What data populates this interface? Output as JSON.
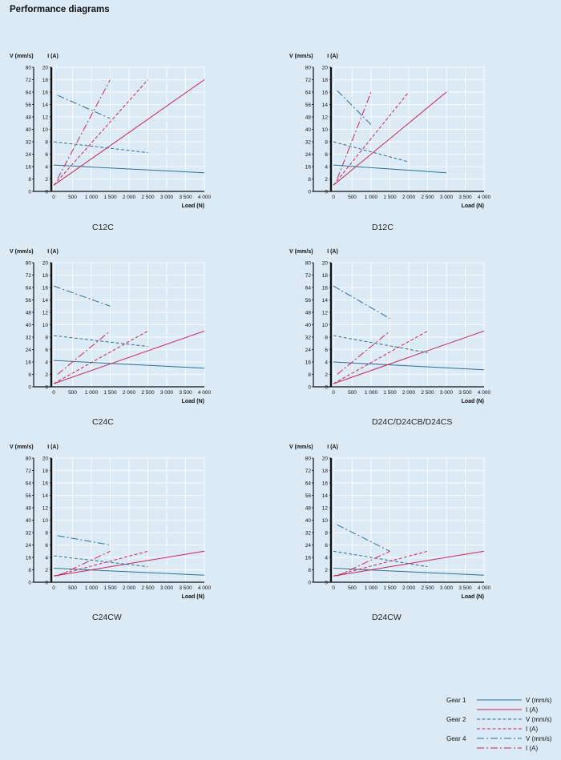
{
  "page_title": "Performance diagrams",
  "colors": {
    "velocity": "#2a6f9a",
    "current": "#c8245a",
    "grid": "#ffffff",
    "axis": "#111111",
    "background": "#dceaf6"
  },
  "legend": {
    "items": [
      {
        "gear": "Gear 1",
        "label": "V (mm/s)",
        "quantity": "velocity",
        "dash": "solid"
      },
      {
        "gear": "",
        "label": "I (A)",
        "quantity": "current",
        "dash": "solid"
      },
      {
        "gear": "Gear 2",
        "label": "V (mm/s)",
        "quantity": "velocity",
        "dash": "dashed"
      },
      {
        "gear": "",
        "label": "I (A)",
        "quantity": "current",
        "dash": "dashed"
      },
      {
        "gear": "Gear 4",
        "label": "V (mm/s)",
        "quantity": "velocity",
        "dash": "dashdot"
      },
      {
        "gear": "",
        "label": "I (A)",
        "quantity": "current",
        "dash": "dashdot"
      }
    ]
  },
  "chart_data": [
    {
      "type": "line",
      "name": "C12C",
      "xlabel": "Load (N)",
      "ylabel_left": "V (mm/s)",
      "ylabel_right": "I (A)",
      "xlim": [
        0,
        4000
      ],
      "ylim_v": [
        0,
        80
      ],
      "ylim_i": [
        0,
        20
      ],
      "grid": true,
      "xticks": [
        "0",
        "500",
        "1 000",
        "1 500",
        "2 000",
        "2 500",
        "3 000",
        "3 500",
        "4 000"
      ],
      "yticks_v": [
        "0",
        "8",
        "16",
        "24",
        "32",
        "40",
        "48",
        "56",
        "64",
        "72",
        "80"
      ],
      "yticks_i": [
        "0",
        "2",
        "4",
        "6",
        "8",
        "10",
        "12",
        "14",
        "16",
        "18",
        "20"
      ],
      "series": [
        {
          "name": "Gear 1 V (mm/s)",
          "axis": "v",
          "dash": "solid",
          "points": [
            [
              0,
              17
            ],
            [
              4000,
              12
            ]
          ]
        },
        {
          "name": "Gear 1 I (A)",
          "axis": "i",
          "dash": "solid",
          "points": [
            [
              0,
              1
            ],
            [
              4000,
              18
            ]
          ]
        },
        {
          "name": "Gear 2 V (mm/s)",
          "axis": "v",
          "dash": "dashed",
          "points": [
            [
              0,
              32
            ],
            [
              2500,
              25
            ]
          ]
        },
        {
          "name": "Gear 2 I (A)",
          "axis": "i",
          "dash": "dashed",
          "points": [
            [
              0,
              1
            ],
            [
              2500,
              18
            ]
          ]
        },
        {
          "name": "Gear 4 V (mm/s)",
          "axis": "v",
          "dash": "dashdot",
          "points": [
            [
              100,
              62
            ],
            [
              1500,
              47
            ]
          ]
        },
        {
          "name": "Gear 4 I (A)",
          "axis": "i",
          "dash": "dashdot",
          "points": [
            [
              100,
              2
            ],
            [
              1500,
              18
            ]
          ]
        }
      ]
    },
    {
      "type": "line",
      "name": "D12C",
      "xlabel": "Load (N)",
      "ylabel_left": "V (mm/s)",
      "ylabel_right": "I (A)",
      "xlim": [
        0,
        4000
      ],
      "ylim_v": [
        0,
        80
      ],
      "ylim_i": [
        0,
        20
      ],
      "grid": true,
      "xticks": [
        "0",
        "500",
        "1 000",
        "1 500",
        "2 000",
        "2 500",
        "3 000",
        "3 500",
        "4 000"
      ],
      "yticks_v": [
        "0",
        "8",
        "16",
        "24",
        "32",
        "40",
        "48",
        "56",
        "64",
        "72",
        "80"
      ],
      "yticks_i": [
        "0",
        "2",
        "4",
        "6",
        "8",
        "10",
        "12",
        "14",
        "16",
        "18",
        "20"
      ],
      "series": [
        {
          "name": "Gear 1 V (mm/s)",
          "axis": "v",
          "dash": "solid",
          "points": [
            [
              0,
              17
            ],
            [
              3000,
              12
            ]
          ]
        },
        {
          "name": "Gear 1 I (A)",
          "axis": "i",
          "dash": "solid",
          "points": [
            [
              0,
              1
            ],
            [
              3000,
              16
            ]
          ]
        },
        {
          "name": "Gear 2 V (mm/s)",
          "axis": "v",
          "dash": "dashed",
          "points": [
            [
              0,
              32
            ],
            [
              2000,
              19
            ]
          ]
        },
        {
          "name": "Gear 2 I (A)",
          "axis": "i",
          "dash": "dashed",
          "points": [
            [
              0,
              1
            ],
            [
              2000,
              16
            ]
          ]
        },
        {
          "name": "Gear 4 V (mm/s)",
          "axis": "v",
          "dash": "dashdot",
          "points": [
            [
              100,
              65
            ],
            [
              1000,
              43
            ]
          ]
        },
        {
          "name": "Gear 4 I (A)",
          "axis": "i",
          "dash": "dashdot",
          "points": [
            [
              100,
              2
            ],
            [
              1000,
              16
            ]
          ]
        }
      ]
    },
    {
      "type": "line",
      "name": "C24C",
      "xlabel": "Load (N)",
      "ylabel_left": "V (mm/s)",
      "ylabel_right": "I (A)",
      "xlim": [
        0,
        4000
      ],
      "ylim_v": [
        0,
        80
      ],
      "ylim_i": [
        0,
        20
      ],
      "grid": true,
      "xticks": [
        "0",
        "500",
        "1 000",
        "1 500",
        "2 000",
        "2 500",
        "3 000",
        "3 500",
        "4 000"
      ],
      "yticks_v": [
        "0",
        "8",
        "16",
        "24",
        "32",
        "40",
        "48",
        "56",
        "64",
        "72",
        "80"
      ],
      "yticks_i": [
        "0",
        "2",
        "4",
        "6",
        "8",
        "10",
        "12",
        "14",
        "16",
        "18",
        "20"
      ],
      "series": [
        {
          "name": "Gear 1 V (mm/s)",
          "axis": "v",
          "dash": "solid",
          "points": [
            [
              0,
              17
            ],
            [
              4000,
              12
            ]
          ]
        },
        {
          "name": "Gear 1 I (A)",
          "axis": "i",
          "dash": "solid",
          "points": [
            [
              0,
              0.5
            ],
            [
              4000,
              9
            ]
          ]
        },
        {
          "name": "Gear 2 V (mm/s)",
          "axis": "v",
          "dash": "dashed",
          "points": [
            [
              0,
              33
            ],
            [
              2500,
              26
            ]
          ]
        },
        {
          "name": "Gear 2 I (A)",
          "axis": "i",
          "dash": "dashed",
          "points": [
            [
              0,
              0.5
            ],
            [
              2500,
              9
            ]
          ]
        },
        {
          "name": "Gear 4 V (mm/s)",
          "axis": "v",
          "dash": "dashdot",
          "points": [
            [
              0,
              65
            ],
            [
              1500,
              52
            ]
          ]
        },
        {
          "name": "Gear 4 I (A)",
          "axis": "i",
          "dash": "dashdot",
          "points": [
            [
              100,
              2
            ],
            [
              1500,
              9
            ]
          ]
        }
      ]
    },
    {
      "type": "line",
      "name": "D24C/D24CB/D24CS",
      "xlabel": "Load (N)",
      "ylabel_left": "V (mm/s)",
      "ylabel_right": "I (A)",
      "xlim": [
        0,
        4000
      ],
      "ylim_v": [
        0,
        80
      ],
      "ylim_i": [
        0,
        20
      ],
      "grid": true,
      "xticks": [
        "0",
        "500",
        "1 000",
        "1 500",
        "2 000",
        "2 500",
        "3 000",
        "3 500",
        "4 000"
      ],
      "yticks_v": [
        "0",
        "8",
        "16",
        "24",
        "32",
        "40",
        "48",
        "56",
        "64",
        "72",
        "80"
      ],
      "yticks_i": [
        "0",
        "2",
        "4",
        "6",
        "8",
        "10",
        "12",
        "14",
        "16",
        "18",
        "20"
      ],
      "series": [
        {
          "name": "Gear 1 V (mm/s)",
          "axis": "v",
          "dash": "solid",
          "points": [
            [
              0,
              16
            ],
            [
              4000,
              11
            ]
          ]
        },
        {
          "name": "Gear 1 I (A)",
          "axis": "i",
          "dash": "solid",
          "points": [
            [
              0,
              0.5
            ],
            [
              4000,
              9
            ]
          ]
        },
        {
          "name": "Gear 2 V (mm/s)",
          "axis": "v",
          "dash": "dashed",
          "points": [
            [
              0,
              33
            ],
            [
              2500,
              22
            ]
          ]
        },
        {
          "name": "Gear 2 I (A)",
          "axis": "i",
          "dash": "dashed",
          "points": [
            [
              0,
              0.5
            ],
            [
              2500,
              9
            ]
          ]
        },
        {
          "name": "Gear 4 V (mm/s)",
          "axis": "v",
          "dash": "dashdot",
          "points": [
            [
              0,
              65
            ],
            [
              1500,
              44
            ]
          ]
        },
        {
          "name": "Gear 4 I (A)",
          "axis": "i",
          "dash": "dashdot",
          "points": [
            [
              100,
              2
            ],
            [
              1500,
              9
            ]
          ]
        }
      ]
    },
    {
      "type": "line",
      "name": "C24CW",
      "xlabel": "Load (N)",
      "ylabel_left": "V (mm/s)",
      "ylabel_right": "I (A)",
      "xlim": [
        0,
        4000
      ],
      "ylim_v": [
        0,
        80
      ],
      "ylim_i": [
        0,
        20
      ],
      "grid": true,
      "xticks": [
        "0",
        "500",
        "1 000",
        "1 500",
        "2 000",
        "2 500",
        "3 000",
        "3 500",
        "4 000"
      ],
      "yticks_v": [
        "0",
        "8",
        "16",
        "24",
        "32",
        "40",
        "48",
        "56",
        "64",
        "72",
        "80"
      ],
      "yticks_i": [
        "0",
        "2",
        "4",
        "6",
        "8",
        "10",
        "12",
        "14",
        "16",
        "18",
        "20"
      ],
      "series": [
        {
          "name": "Gear 1 V (mm/s)",
          "axis": "v",
          "dash": "solid",
          "points": [
            [
              0,
              9
            ],
            [
              4000,
              4.5
            ]
          ]
        },
        {
          "name": "Gear 1 I (A)",
          "axis": "i",
          "dash": "solid",
          "points": [
            [
              0,
              1
            ],
            [
              4000,
              5
            ]
          ]
        },
        {
          "name": "Gear 2 V (mm/s)",
          "axis": "v",
          "dash": "dashed",
          "points": [
            [
              0,
              17
            ],
            [
              2500,
              10
            ]
          ]
        },
        {
          "name": "Gear 2 I (A)",
          "axis": "i",
          "dash": "dashed",
          "points": [
            [
              0,
              1
            ],
            [
              2500,
              5
            ]
          ]
        },
        {
          "name": "Gear 4 V (mm/s)",
          "axis": "v",
          "dash": "dashdot",
          "points": [
            [
              100,
              30
            ],
            [
              1500,
              24
            ]
          ]
        },
        {
          "name": "Gear 4 I (A)",
          "axis": "i",
          "dash": "dashdot",
          "points": [
            [
              100,
              1
            ],
            [
              1500,
              5
            ]
          ]
        }
      ]
    },
    {
      "type": "line",
      "name": "D24CW",
      "xlabel": "Load (N)",
      "ylabel_left": "V (mm/s)",
      "ylabel_right": "I (A)",
      "xlim": [
        0,
        4000
      ],
      "ylim_v": [
        0,
        80
      ],
      "ylim_i": [
        0,
        20
      ],
      "grid": true,
      "xticks": [
        "0",
        "500",
        "1 000",
        "1 500",
        "2 000",
        "2 500",
        "3 000",
        "3 500",
        "4 000"
      ],
      "yticks_v": [
        "0",
        "8",
        "16",
        "24",
        "32",
        "40",
        "48",
        "56",
        "64",
        "72",
        "80"
      ],
      "yticks_i": [
        "0",
        "2",
        "4",
        "6",
        "8",
        "10",
        "12",
        "14",
        "16",
        "18",
        "20"
      ],
      "series": [
        {
          "name": "Gear 1 V (mm/s)",
          "axis": "v",
          "dash": "solid",
          "points": [
            [
              0,
              9
            ],
            [
              4000,
              4.5
            ]
          ]
        },
        {
          "name": "Gear 1 I (A)",
          "axis": "i",
          "dash": "solid",
          "points": [
            [
              0,
              1
            ],
            [
              4000,
              5
            ]
          ]
        },
        {
          "name": "Gear 2 V (mm/s)",
          "axis": "v",
          "dash": "dashed",
          "points": [
            [
              0,
              20
            ],
            [
              2500,
              10
            ]
          ]
        },
        {
          "name": "Gear 2 I (A)",
          "axis": "i",
          "dash": "dashed",
          "points": [
            [
              0,
              1
            ],
            [
              2500,
              5
            ]
          ]
        },
        {
          "name": "Gear 4 V (mm/s)",
          "axis": "v",
          "dash": "dashdot",
          "points": [
            [
              100,
              37
            ],
            [
              1500,
              20
            ]
          ]
        },
        {
          "name": "Gear 4 I (A)",
          "axis": "i",
          "dash": "dashdot",
          "points": [
            [
              100,
              1
            ],
            [
              1500,
              5
            ]
          ]
        }
      ]
    }
  ]
}
